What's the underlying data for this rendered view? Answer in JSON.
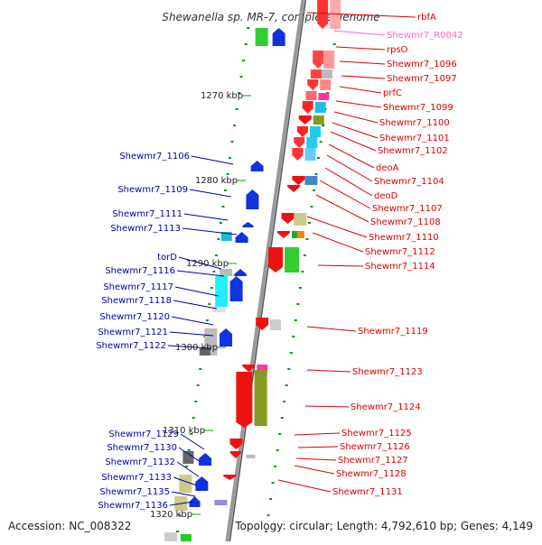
{
  "title": "Shewanella sp. MR-7, complete genome",
  "accession": "Accession: NC_008322",
  "summary": "Topology: circular; Length: 4,792,610 bp; Genes: 4,149",
  "colors": {
    "right_label": "#dd0000",
    "left_label": "#0000aa",
    "rna_label": "#ff66cc",
    "backbone": "#999999",
    "tick": "#009900"
  },
  "scale_labels": [
    {
      "label": "1270 kbp"
    },
    {
      "label": "1280 kbp"
    },
    {
      "label": "1290 kbp"
    },
    {
      "label": "1300 kbp"
    },
    {
      "label": "1310 kbp"
    },
    {
      "label": "1320 kbp"
    }
  ],
  "right_genes": [
    {
      "name": "rbfA"
    },
    {
      "name": "Shewmr7_R0042"
    },
    {
      "name": "rpsO"
    },
    {
      "name": "Shewmr7_1096"
    },
    {
      "name": "Shewmr7_1097"
    },
    {
      "name": "prfC"
    },
    {
      "name": "Shewmr7_1099"
    },
    {
      "name": "Shewmr7_1100"
    },
    {
      "name": "Shewmr7_1101"
    },
    {
      "name": "Shewmr7_1102"
    },
    {
      "name": "deoA"
    },
    {
      "name": "Shewmr7_1104"
    },
    {
      "name": "deoD"
    },
    {
      "name": "Shewmr7_1107"
    },
    {
      "name": "Shewmr7_1108"
    },
    {
      "name": "Shewmr7_1110"
    },
    {
      "name": "Shewmr7_1112"
    },
    {
      "name": "Shewmr7_1114"
    },
    {
      "name": "Shewmr7_1119"
    },
    {
      "name": "Shewmr7_1123"
    },
    {
      "name": "Shewmr7_1124"
    },
    {
      "name": "Shewmr7_1125"
    },
    {
      "name": "Shewmr7_1126"
    },
    {
      "name": "Shewmr7_1127"
    },
    {
      "name": "Shewmr7_1128"
    },
    {
      "name": "Shewmr7_1131"
    }
  ],
  "left_genes": [
    {
      "name": "Shewmr7_1106"
    },
    {
      "name": "Shewmr7_1109"
    },
    {
      "name": "Shewmr7_1111"
    },
    {
      "name": "Shewmr7_1113"
    },
    {
      "name": "torD"
    },
    {
      "name": "Shewmr7_1116"
    },
    {
      "name": "Shewmr7_1117"
    },
    {
      "name": "Shewmr7_1118"
    },
    {
      "name": "Shewmr7_1120"
    },
    {
      "name": "Shewmr7_1121"
    },
    {
      "name": "Shewmr7_1122"
    },
    {
      "name": "Shewmr7_1129"
    },
    {
      "name": "Shewmr7_1130"
    },
    {
      "name": "Shewmr7_1132"
    },
    {
      "name": "Shewmr7_1133"
    },
    {
      "name": "Shewmr7_1135"
    },
    {
      "name": "Shewmr7_1136"
    }
  ]
}
